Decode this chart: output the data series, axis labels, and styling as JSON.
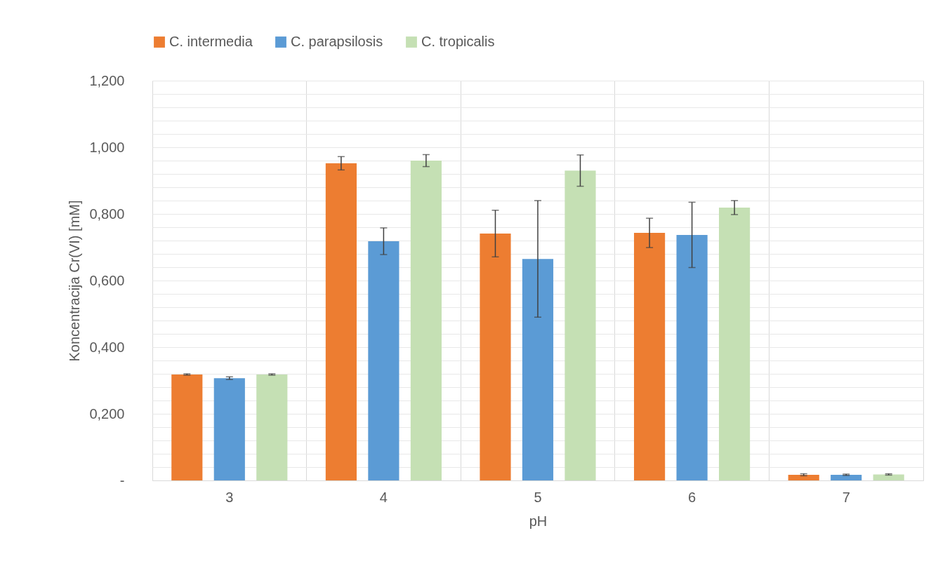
{
  "chart_data": {
    "type": "bar",
    "xlabel": "pH",
    "ylabel": "Koncentracija Cr(VI) [mM]",
    "categories": [
      "3",
      "4",
      "5",
      "6",
      "7"
    ],
    "series": [
      {
        "name": "C. intermedia",
        "color": "#ed7d31",
        "values": [
          0.318,
          0.952,
          0.741,
          0.743,
          0.017
        ],
        "errors": [
          0.002,
          0.02,
          0.07,
          0.044,
          0.003
        ]
      },
      {
        "name": "C. parapsilosis",
        "color": "#5b9bd5",
        "values": [
          0.307,
          0.718,
          0.665,
          0.737,
          0.017
        ],
        "errors": [
          0.004,
          0.04,
          0.175,
          0.098,
          0.002
        ]
      },
      {
        "name": "C. tropicalis",
        "color": "#c5e0b4",
        "values": [
          0.318,
          0.96,
          0.93,
          0.819,
          0.018
        ],
        "errors": [
          0.002,
          0.018,
          0.047,
          0.021,
          0.002
        ]
      }
    ],
    "ylim": [
      0,
      1.2
    ],
    "yticks": [
      {
        "value": 0,
        "label": "-"
      },
      {
        "value": 0.04,
        "label": null
      },
      {
        "value": 0.08,
        "label": null
      },
      {
        "value": 0.12,
        "label": null
      },
      {
        "value": 0.16,
        "label": null
      },
      {
        "value": 0.2,
        "label": "0,200"
      },
      {
        "value": 0.24,
        "label": null
      },
      {
        "value": 0.28,
        "label": null
      },
      {
        "value": 0.32,
        "label": null
      },
      {
        "value": 0.36,
        "label": null
      },
      {
        "value": 0.4,
        "label": "0,400"
      },
      {
        "value": 0.44,
        "label": null
      },
      {
        "value": 0.48,
        "label": null
      },
      {
        "value": 0.52,
        "label": null
      },
      {
        "value": 0.56,
        "label": null
      },
      {
        "value": 0.6,
        "label": "0,600"
      },
      {
        "value": 0.64,
        "label": null
      },
      {
        "value": 0.68,
        "label": null
      },
      {
        "value": 0.72,
        "label": null
      },
      {
        "value": 0.76,
        "label": null
      },
      {
        "value": 0.8,
        "label": "0,800"
      },
      {
        "value": 0.84,
        "label": null
      },
      {
        "value": 0.88,
        "label": null
      },
      {
        "value": 0.92,
        "label": null
      },
      {
        "value": 0.96,
        "label": null
      },
      {
        "value": 1,
        "label": "1,000"
      },
      {
        "value": 1.04,
        "label": null
      },
      {
        "value": 1.08,
        "label": null
      },
      {
        "value": 1.12,
        "label": null
      },
      {
        "value": 1.16,
        "label": null
      },
      {
        "value": 1.2,
        "label": "1,200"
      }
    ],
    "grid": true,
    "legend": "top"
  }
}
